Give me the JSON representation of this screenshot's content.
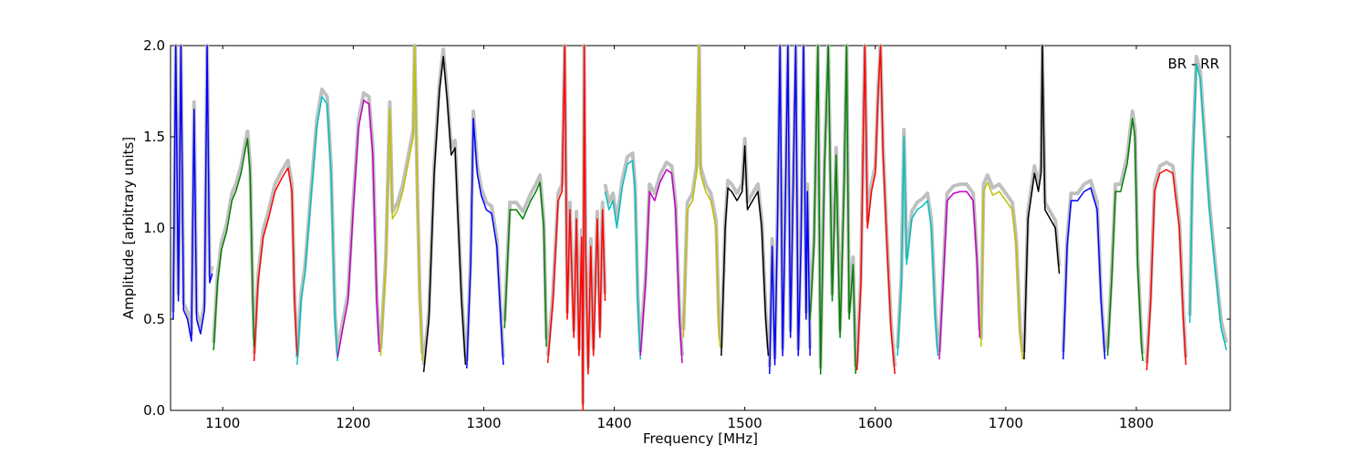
{
  "chart_data": {
    "type": "line",
    "title": "",
    "xlabel": "Frequency [MHz]",
    "ylabel": "Amplitude [arbitrary units]",
    "xlim": [
      1060,
      1872
    ],
    "ylim": [
      0.0,
      2.0
    ],
    "xticks": [
      1100,
      1200,
      1300,
      1400,
      1500,
      1600,
      1700,
      1800
    ],
    "yticks": [
      0.0,
      0.5,
      1.0,
      1.5,
      2.0
    ],
    "xtick_labels": [
      "1100",
      "1200",
      "1300",
      "1400",
      "1500",
      "1600",
      "1700",
      "1800"
    ],
    "ytick_labels": [
      "0.0",
      "0.5",
      "1.0",
      "1.5",
      "2.0"
    ],
    "annotation": "BR - RR",
    "annotation_position": "top-right",
    "grid": false,
    "reference_color": "#c0c0c0",
    "series": [
      {
        "color": "#0000ff",
        "points": [
          [
            1062,
            0.5
          ],
          [
            1064,
            2.0
          ],
          [
            1066,
            0.6
          ],
          [
            1068,
            2.0
          ],
          [
            1070,
            0.55
          ],
          [
            1073,
            0.5
          ],
          [
            1076,
            0.38
          ],
          [
            1078,
            1.65
          ],
          [
            1080,
            0.5
          ],
          [
            1083,
            0.42
          ],
          [
            1086,
            0.55
          ],
          [
            1088,
            2.0
          ],
          [
            1090,
            0.7
          ],
          [
            1092,
            0.75
          ]
        ]
      },
      {
        "color": "#008000",
        "points": [
          [
            1093,
            0.33
          ],
          [
            1096,
            0.7
          ],
          [
            1099,
            0.88
          ],
          [
            1103,
            0.98
          ],
          [
            1107,
            1.15
          ],
          [
            1110,
            1.2
          ],
          [
            1114,
            1.3
          ],
          [
            1117,
            1.42
          ],
          [
            1119,
            1.49
          ],
          [
            1121,
            1.3
          ],
          [
            1123,
            0.6
          ],
          [
            1124,
            0.35
          ]
        ]
      },
      {
        "color": "#ff0000",
        "points": [
          [
            1124,
            0.27
          ],
          [
            1127,
            0.7
          ],
          [
            1131,
            0.95
          ],
          [
            1135,
            1.05
          ],
          [
            1140,
            1.2
          ],
          [
            1145,
            1.27
          ],
          [
            1150,
            1.33
          ],
          [
            1153,
            1.2
          ],
          [
            1155,
            0.6
          ],
          [
            1157,
            0.3
          ]
        ]
      },
      {
        "color": "#00bfbf",
        "points": [
          [
            1157,
            0.25
          ],
          [
            1160,
            0.6
          ],
          [
            1163,
            0.75
          ],
          [
            1168,
            1.2
          ],
          [
            1172,
            1.55
          ],
          [
            1176,
            1.72
          ],
          [
            1180,
            1.68
          ],
          [
            1183,
            1.3
          ],
          [
            1186,
            0.5
          ],
          [
            1188,
            0.27
          ]
        ]
      },
      {
        "color": "#bf00bf",
        "points": [
          [
            1188,
            0.29
          ],
          [
            1192,
            0.45
          ],
          [
            1196,
            0.6
          ],
          [
            1200,
            1.1
          ],
          [
            1204,
            1.55
          ],
          [
            1208,
            1.7
          ],
          [
            1212,
            1.68
          ],
          [
            1215,
            1.4
          ],
          [
            1218,
            0.6
          ],
          [
            1220,
            0.32
          ]
        ]
      },
      {
        "color": "#bfbf00",
        "points": [
          [
            1221,
            0.3
          ],
          [
            1225,
            0.8
          ],
          [
            1228,
            1.65
          ],
          [
            1230,
            1.05
          ],
          [
            1234,
            1.1
          ],
          [
            1238,
            1.2
          ],
          [
            1242,
            1.35
          ],
          [
            1246,
            1.5
          ],
          [
            1247,
            2.0
          ],
          [
            1249,
            1.2
          ],
          [
            1251,
            0.6
          ],
          [
            1253,
            0.27
          ]
        ]
      },
      {
        "color": "#000000",
        "points": [
          [
            1254,
            0.21
          ],
          [
            1258,
            0.5
          ],
          [
            1262,
            1.3
          ],
          [
            1266,
            1.75
          ],
          [
            1269,
            1.94
          ],
          [
            1272,
            1.7
          ],
          [
            1275,
            1.4
          ],
          [
            1278,
            1.44
          ],
          [
            1280,
            1.1
          ],
          [
            1283,
            0.6
          ],
          [
            1286,
            0.25
          ]
        ]
      },
      {
        "color": "#0000ff",
        "points": [
          [
            1287,
            0.23
          ],
          [
            1290,
            0.8
          ],
          [
            1292,
            1.6
          ],
          [
            1295,
            1.3
          ],
          [
            1298,
            1.18
          ],
          [
            1302,
            1.1
          ],
          [
            1306,
            1.08
          ],
          [
            1310,
            0.9
          ],
          [
            1313,
            0.5
          ],
          [
            1315,
            0.25
          ]
        ]
      },
      {
        "color": "#008000",
        "points": [
          [
            1316,
            0.45
          ],
          [
            1320,
            1.1
          ],
          [
            1325,
            1.1
          ],
          [
            1330,
            1.05
          ],
          [
            1336,
            1.15
          ],
          [
            1340,
            1.2
          ],
          [
            1343,
            1.25
          ],
          [
            1346,
            1.0
          ],
          [
            1348,
            0.35
          ]
        ]
      },
      {
        "color": "#ff0000",
        "points": [
          [
            1349,
            0.26
          ],
          [
            1353,
            0.6
          ],
          [
            1357,
            1.15
          ],
          [
            1360,
            1.2
          ],
          [
            1362,
            2.0
          ],
          [
            1364,
            0.5
          ],
          [
            1366,
            1.1
          ],
          [
            1369,
            0.4
          ],
          [
            1371,
            1.05
          ],
          [
            1373,
            0.3
          ],
          [
            1375,
            0.95
          ],
          [
            1376,
            0.0
          ],
          [
            1377,
            2.0
          ],
          [
            1378,
            0.9
          ],
          [
            1380,
            0.2
          ],
          [
            1382,
            0.9
          ],
          [
            1384,
            0.3
          ],
          [
            1387,
            1.05
          ],
          [
            1389,
            0.4
          ],
          [
            1391,
            1.1
          ],
          [
            1393,
            0.6
          ]
        ]
      },
      {
        "color": "#00bfbf",
        "points": [
          [
            1393,
            1.2
          ],
          [
            1396,
            1.1
          ],
          [
            1399,
            1.15
          ],
          [
            1402,
            1.0
          ],
          [
            1406,
            1.22
          ],
          [
            1410,
            1.35
          ],
          [
            1414,
            1.37
          ],
          [
            1416,
            1.2
          ],
          [
            1418,
            0.6
          ],
          [
            1420,
            0.28
          ]
        ]
      },
      {
        "color": "#bf00bf",
        "points": [
          [
            1420,
            0.3
          ],
          [
            1424,
            0.7
          ],
          [
            1427,
            1.2
          ],
          [
            1431,
            1.15
          ],
          [
            1435,
            1.25
          ],
          [
            1440,
            1.32
          ],
          [
            1444,
            1.3
          ],
          [
            1447,
            1.1
          ],
          [
            1450,
            0.5
          ],
          [
            1452,
            0.26
          ]
        ]
      },
      {
        "color": "#bfbf00",
        "points": [
          [
            1453,
            0.4
          ],
          [
            1456,
            1.1
          ],
          [
            1460,
            1.15
          ],
          [
            1463,
            1.3
          ],
          [
            1465,
            2.0
          ],
          [
            1466,
            1.3
          ],
          [
            1470,
            1.2
          ],
          [
            1474,
            1.15
          ],
          [
            1478,
            1.0
          ],
          [
            1480,
            0.5
          ],
          [
            1481,
            0.35
          ]
        ]
      },
      {
        "color": "#000000",
        "points": [
          [
            1482,
            0.3
          ],
          [
            1485,
            1.0
          ],
          [
            1487,
            1.22
          ],
          [
            1490,
            1.2
          ],
          [
            1494,
            1.15
          ],
          [
            1498,
            1.2
          ],
          [
            1500,
            1.45
          ],
          [
            1502,
            1.1
          ],
          [
            1506,
            1.15
          ],
          [
            1510,
            1.2
          ],
          [
            1513,
            1.0
          ],
          [
            1516,
            0.5
          ],
          [
            1518,
            0.3
          ]
        ]
      },
      {
        "color": "#0000ff",
        "points": [
          [
            1519,
            0.2
          ],
          [
            1521,
            0.9
          ],
          [
            1523,
            0.25
          ],
          [
            1525,
            1.0
          ],
          [
            1527,
            2.0
          ],
          [
            1529,
            0.3
          ],
          [
            1531,
            1.1
          ],
          [
            1533,
            2.0
          ],
          [
            1535,
            0.4
          ],
          [
            1537,
            1.2
          ],
          [
            1539,
            2.0
          ],
          [
            1541,
            0.3
          ],
          [
            1543,
            0.9
          ],
          [
            1545,
            2.0
          ],
          [
            1547,
            0.5
          ],
          [
            1548,
            1.2
          ],
          [
            1550,
            0.3
          ]
        ]
      },
      {
        "color": "#008000",
        "points": [
          [
            1550,
            0.5
          ],
          [
            1553,
            0.9
          ],
          [
            1556,
            2.0
          ],
          [
            1558,
            0.2
          ],
          [
            1561,
            1.3
          ],
          [
            1564,
            2.0
          ],
          [
            1567,
            0.6
          ],
          [
            1570,
            1.4
          ],
          [
            1573,
            0.4
          ],
          [
            1576,
            1.2
          ],
          [
            1578,
            2.0
          ],
          [
            1580,
            0.5
          ],
          [
            1583,
            0.8
          ],
          [
            1585,
            0.2
          ]
        ]
      },
      {
        "color": "#ff0000",
        "points": [
          [
            1586,
            0.22
          ],
          [
            1589,
            0.7
          ],
          [
            1591,
            1.6
          ],
          [
            1592,
            2.0
          ],
          [
            1594,
            1.0
          ],
          [
            1597,
            1.2
          ],
          [
            1600,
            1.3
          ],
          [
            1602,
            1.7
          ],
          [
            1604,
            2.0
          ],
          [
            1606,
            1.4
          ],
          [
            1609,
            0.9
          ],
          [
            1612,
            0.45
          ],
          [
            1615,
            0.2
          ]
        ]
      },
      {
        "color": "#00bfbf",
        "points": [
          [
            1617,
            0.3
          ],
          [
            1620,
            0.7
          ],
          [
            1622,
            1.5
          ],
          [
            1624,
            0.8
          ],
          [
            1628,
            1.05
          ],
          [
            1632,
            1.1
          ],
          [
            1636,
            1.12
          ],
          [
            1640,
            1.15
          ],
          [
            1643,
            1.0
          ],
          [
            1646,
            0.5
          ],
          [
            1648,
            0.3
          ]
        ]
      },
      {
        "color": "#bf00bf",
        "points": [
          [
            1649,
            0.28
          ],
          [
            1652,
            0.7
          ],
          [
            1655,
            1.15
          ],
          [
            1660,
            1.19
          ],
          [
            1665,
            1.2
          ],
          [
            1670,
            1.2
          ],
          [
            1675,
            1.15
          ],
          [
            1678,
            0.8
          ],
          [
            1680,
            0.4
          ]
        ]
      },
      {
        "color": "#bfbf00",
        "points": [
          [
            1681,
            0.35
          ],
          [
            1683,
            1.2
          ],
          [
            1686,
            1.25
          ],
          [
            1690,
            1.18
          ],
          [
            1695,
            1.2
          ],
          [
            1700,
            1.15
          ],
          [
            1705,
            1.1
          ],
          [
            1708,
            0.9
          ],
          [
            1711,
            0.4
          ],
          [
            1713,
            0.28
          ]
        ]
      },
      {
        "color": "#000000",
        "points": [
          [
            1714,
            0.28
          ],
          [
            1717,
            1.05
          ],
          [
            1720,
            1.2
          ],
          [
            1722,
            1.3
          ],
          [
            1725,
            1.2
          ],
          [
            1727,
            1.3
          ],
          [
            1728,
            2.0
          ],
          [
            1730,
            1.1
          ],
          [
            1734,
            1.05
          ],
          [
            1738,
            1.0
          ],
          [
            1741,
            0.75
          ]
        ]
      },
      {
        "color": "#0000ff",
        "points": [
          [
            1744,
            0.28
          ],
          [
            1747,
            0.9
          ],
          [
            1750,
            1.15
          ],
          [
            1755,
            1.15
          ],
          [
            1760,
            1.2
          ],
          [
            1765,
            1.22
          ],
          [
            1770,
            1.1
          ],
          [
            1773,
            0.6
          ],
          [
            1776,
            0.28
          ]
        ]
      },
      {
        "color": "#008000",
        "points": [
          [
            1778,
            0.3
          ],
          [
            1781,
            0.7
          ],
          [
            1784,
            1.2
          ],
          [
            1788,
            1.2
          ],
          [
            1793,
            1.35
          ],
          [
            1797,
            1.6
          ],
          [
            1799,
            1.5
          ],
          [
            1801,
            0.8
          ],
          [
            1804,
            0.35
          ],
          [
            1805,
            0.27
          ]
        ]
      },
      {
        "color": "#ff0000",
        "points": [
          [
            1808,
            0.22
          ],
          [
            1811,
            0.6
          ],
          [
            1814,
            1.2
          ],
          [
            1818,
            1.3
          ],
          [
            1823,
            1.32
          ],
          [
            1828,
            1.3
          ],
          [
            1833,
            1.0
          ],
          [
            1836,
            0.5
          ],
          [
            1838,
            0.25
          ]
        ]
      },
      {
        "color": "#00bfbf",
        "points": [
          [
            1841,
            0.48
          ],
          [
            1843,
            1.3
          ],
          [
            1846,
            1.9
          ],
          [
            1849,
            1.82
          ],
          [
            1852,
            1.5
          ],
          [
            1856,
            1.1
          ],
          [
            1860,
            0.8
          ],
          [
            1865,
            0.45
          ],
          [
            1869,
            0.33
          ]
        ]
      }
    ]
  }
}
